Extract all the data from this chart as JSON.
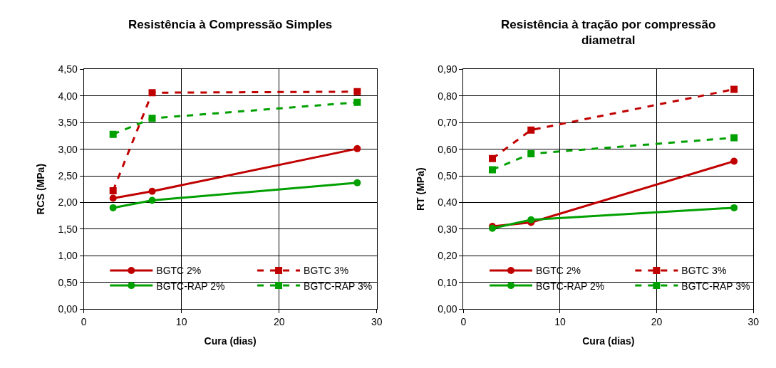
{
  "chart_data": [
    {
      "type": "line",
      "title": "Resistência à Compressão Simples",
      "xlabel": "Cura (dias)",
      "ylabel": "RCS (MPa)",
      "xlim": [
        0,
        30
      ],
      "xticks": [
        0,
        10,
        20,
        30
      ],
      "ylim": [
        0,
        4.5
      ],
      "yticks": [
        {
          "value": 0,
          "label": "0,00"
        },
        {
          "value": 0.5,
          "label": "0,50"
        },
        {
          "value": 1,
          "label": "1,00"
        },
        {
          "value": 1.5,
          "label": "1,50"
        },
        {
          "value": 2,
          "label": "2,00"
        },
        {
          "value": 2.5,
          "label": "2,50"
        },
        {
          "value": 3,
          "label": "3,00"
        },
        {
          "value": 3.5,
          "label": "3,50"
        },
        {
          "value": 4,
          "label": "4,00"
        },
        {
          "value": 4.5,
          "label": "4,50"
        }
      ],
      "grid": true,
      "legend": "bottom",
      "x": [
        3,
        7,
        28
      ],
      "series": [
        {
          "name": "BGTC 2%",
          "color": "#c00000",
          "values": [
            2.08,
            2.21,
            3.01
          ],
          "marker": "circle",
          "line_style": "solid"
        },
        {
          "name": "BGTC 3%",
          "color": "#c00000",
          "values": [
            2.22,
            4.06,
            4.08
          ],
          "marker": "square",
          "line_style": "dashed"
        },
        {
          "name": "BGTC-RAP 2%",
          "color": "#00a000",
          "values": [
            1.9,
            2.04,
            2.37
          ],
          "marker": "circle",
          "line_style": "solid"
        },
        {
          "name": "BGTC-RAP 3%",
          "color": "#00a000",
          "values": [
            3.28,
            3.58,
            3.88
          ],
          "marker": "square",
          "line_style": "dashed"
        }
      ]
    },
    {
      "type": "line",
      "title": "Resistência à tração por compressão diametral",
      "xlabel": "Cura (dias)",
      "ylabel": "RT (MPa)",
      "xlim": [
        0,
        30
      ],
      "xticks": [
        0,
        10,
        20,
        30
      ],
      "ylim": [
        0,
        0.9
      ],
      "yticks": [
        {
          "value": 0,
          "label": "0,00"
        },
        {
          "value": 0.1,
          "label": "0,10"
        },
        {
          "value": 0.2,
          "label": "0,20"
        },
        {
          "value": 0.3,
          "label": "0,30"
        },
        {
          "value": 0.4,
          "label": "0,40"
        },
        {
          "value": 0.5,
          "label": "0,50"
        },
        {
          "value": 0.6,
          "label": "0,60"
        },
        {
          "value": 0.7,
          "label": "0,70"
        },
        {
          "value": 0.8,
          "label": "0,80"
        },
        {
          "value": 0.9,
          "label": "0,90"
        }
      ],
      "grid": true,
      "legend": "bottom",
      "x": [
        3,
        7,
        28
      ],
      "series": [
        {
          "name": "BGTC 2%",
          "color": "#c00000",
          "values": [
            0.31,
            0.325,
            0.555
          ],
          "marker": "circle",
          "line_style": "solid"
        },
        {
          "name": "BGTC 3%",
          "color": "#c00000",
          "values": [
            0.565,
            0.672,
            0.825
          ],
          "marker": "square",
          "line_style": "dashed"
        },
        {
          "name": "BGTC-RAP 2%",
          "color": "#00a000",
          "values": [
            0.303,
            0.335,
            0.38
          ],
          "marker": "circle",
          "line_style": "solid"
        },
        {
          "name": "BGTC-RAP 3%",
          "color": "#00a000",
          "values": [
            0.523,
            0.583,
            0.643
          ],
          "marker": "square",
          "line_style": "dashed"
        }
      ]
    }
  ]
}
